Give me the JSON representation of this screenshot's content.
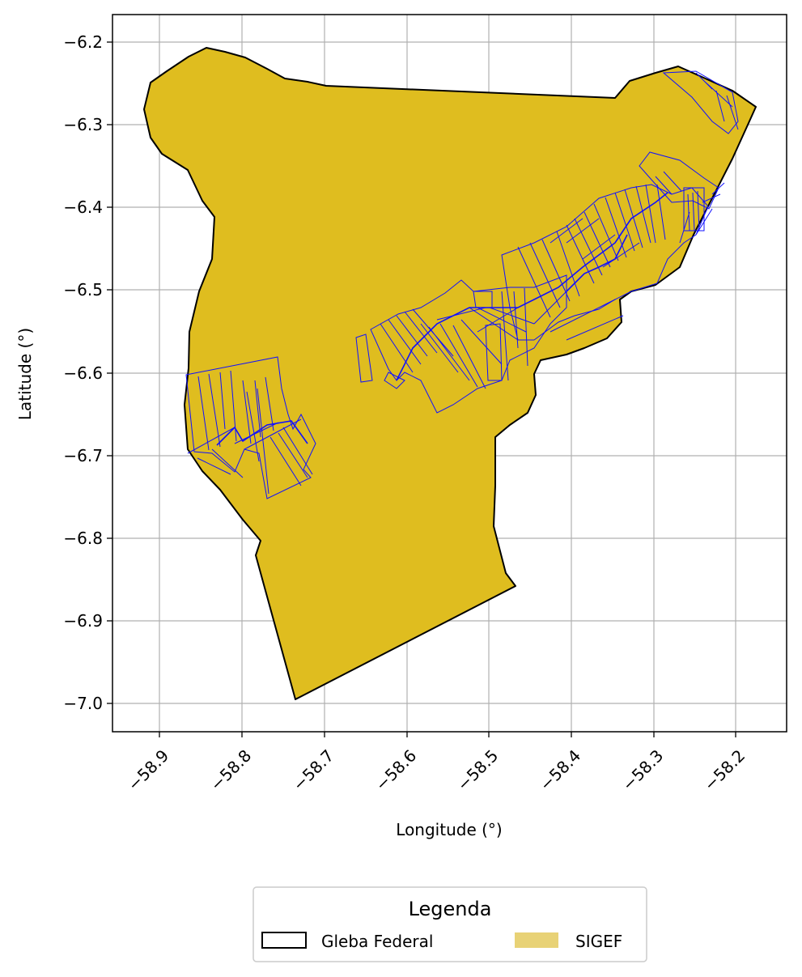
{
  "map": {
    "x_axis_label": "Longitude (°)",
    "y_axis_label": "Latitude (°)",
    "x_ticks": [
      "−58.9",
      "−58.8",
      "−58.7",
      "−58.6",
      "−58.5",
      "−58.4",
      "−58.3",
      "−58.2"
    ],
    "y_ticks": [
      "−6.2",
      "−6.3",
      "−6.4",
      "−6.5",
      "−6.6",
      "−6.7",
      "−6.8",
      "−6.9",
      "−7.0"
    ],
    "grid": true
  },
  "legend": {
    "title": "Legenda",
    "items": [
      {
        "label": "Gleba Federal",
        "style": "outline",
        "color": "#000000"
      },
      {
        "label": "SIGEF",
        "style": "fill",
        "color": "#e8d276"
      }
    ]
  },
  "colors": {
    "gleba_fill": "#dfbd1f",
    "gleba_edge": "#000000",
    "parcel_edge": "#1010ff",
    "grid": "#b0b0b0"
  }
}
